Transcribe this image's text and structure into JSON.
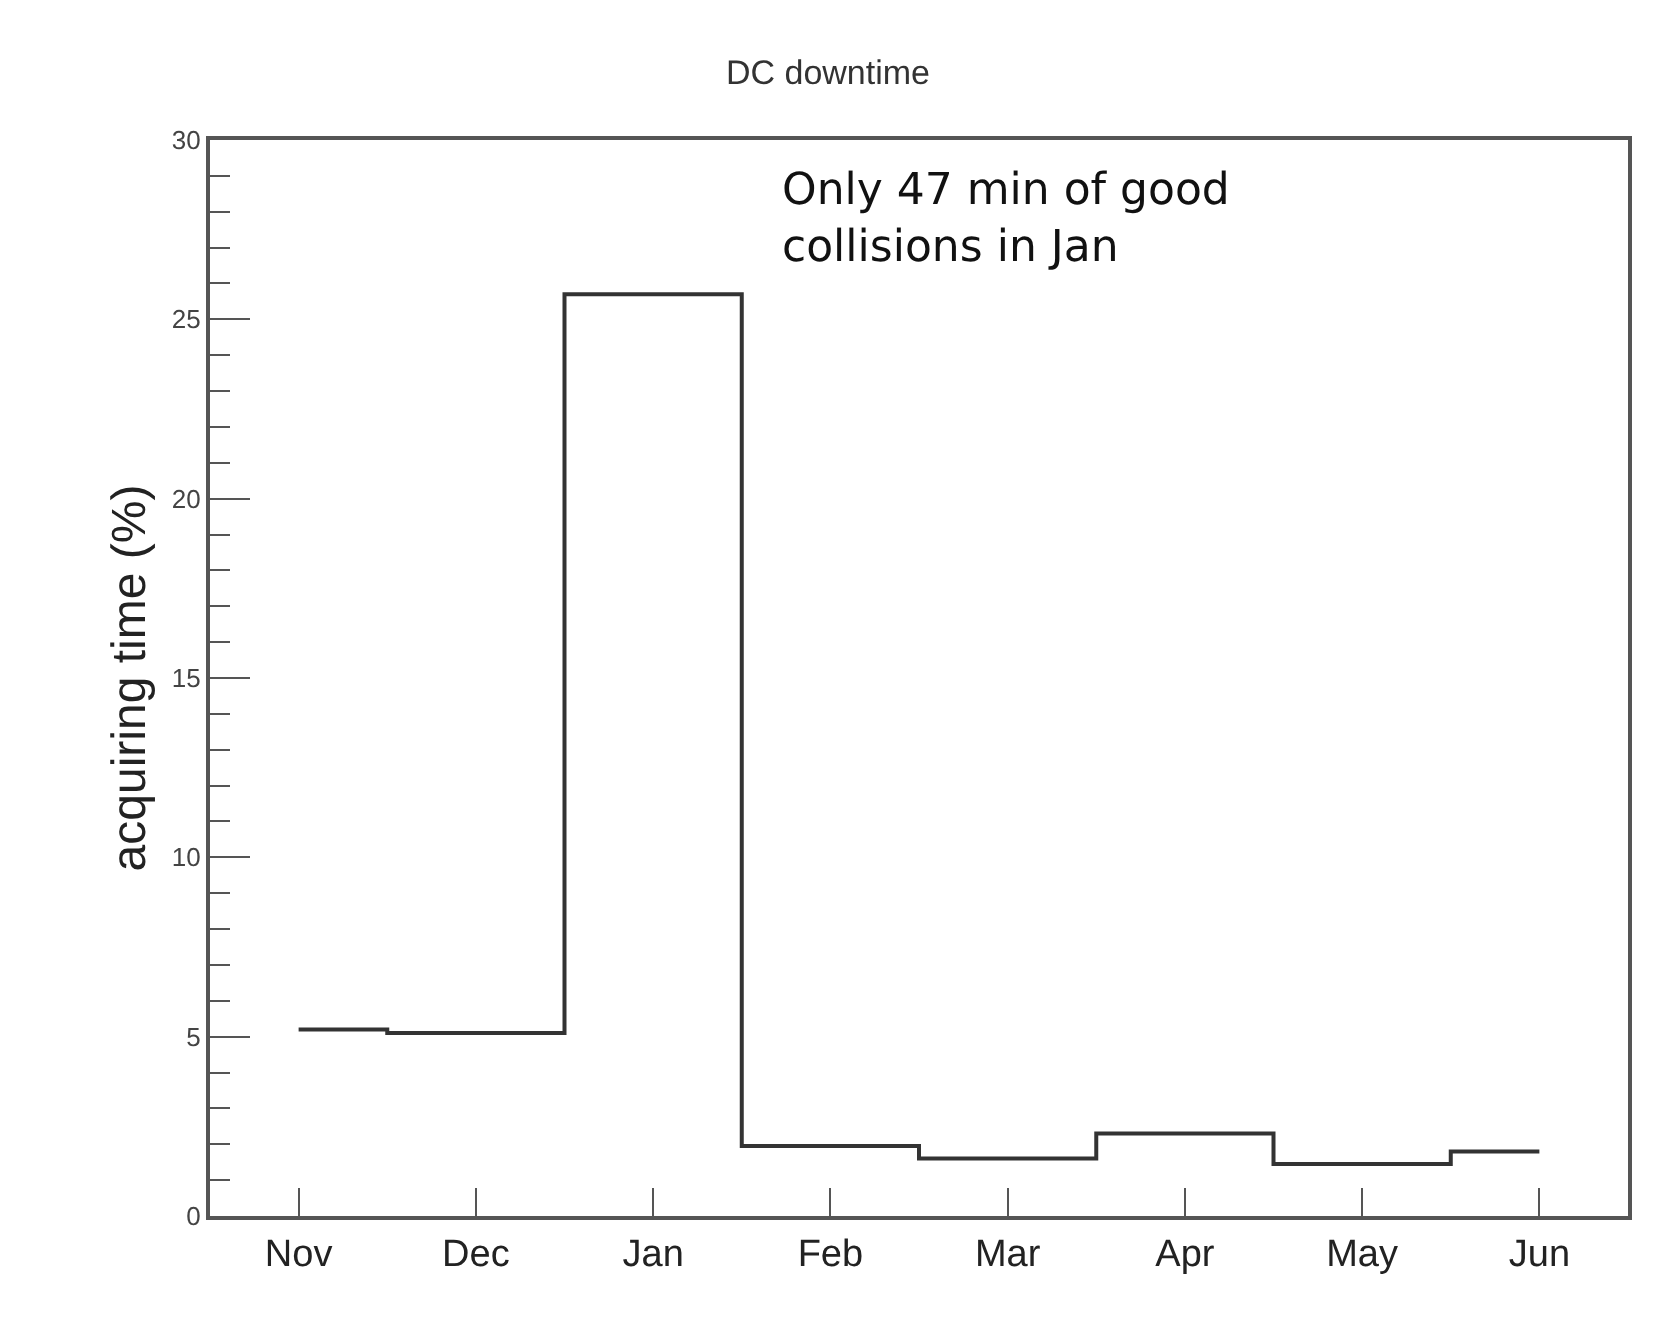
{
  "chart_data": {
    "type": "step",
    "title": "DC downtime",
    "ylabel": "acquiring time (%)",
    "categories": [
      "Nov",
      "Dec",
      "Jan",
      "Feb",
      "Mar",
      "Apr",
      "May",
      "Jun"
    ],
    "values": [
      5.2,
      5.1,
      25.7,
      1.95,
      1.6,
      2.3,
      1.45,
      1.8
    ],
    "color": "#333333",
    "ylim": [
      0,
      30
    ],
    "yticks": [
      0,
      5,
      10,
      15,
      20,
      25,
      30
    ],
    "grid": false,
    "annotations": [
      "Only 47 min of good collisions in Jan"
    ]
  }
}
